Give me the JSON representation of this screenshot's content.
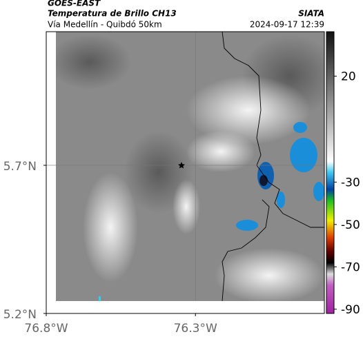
{
  "header": {
    "product": "GOES-EAST",
    "title": "Temperatura de Brillo CH13",
    "source": "SIATA",
    "subtitle": "Vía Medellín - Quibdó 50km",
    "timestamp": "2024-09-17 12:39"
  },
  "map": {
    "xlim": [
      -76.8,
      -75.868
    ],
    "ylim": [
      5.2,
      6.151
    ],
    "xticks": [
      {
        "value": -76.8,
        "label": "76.8°W"
      },
      {
        "value": -76.3,
        "label": "76.3°W"
      }
    ],
    "yticks": [
      {
        "value": 5.2,
        "label": "5.2°N"
      },
      {
        "value": 5.7,
        "label": "5.7°N"
      }
    ],
    "grid": true
  },
  "colorbar": {
    "clim": [
      -92,
      41
    ],
    "ticks": [
      20,
      -30,
      -50,
      -70,
      -90
    ]
  }
}
